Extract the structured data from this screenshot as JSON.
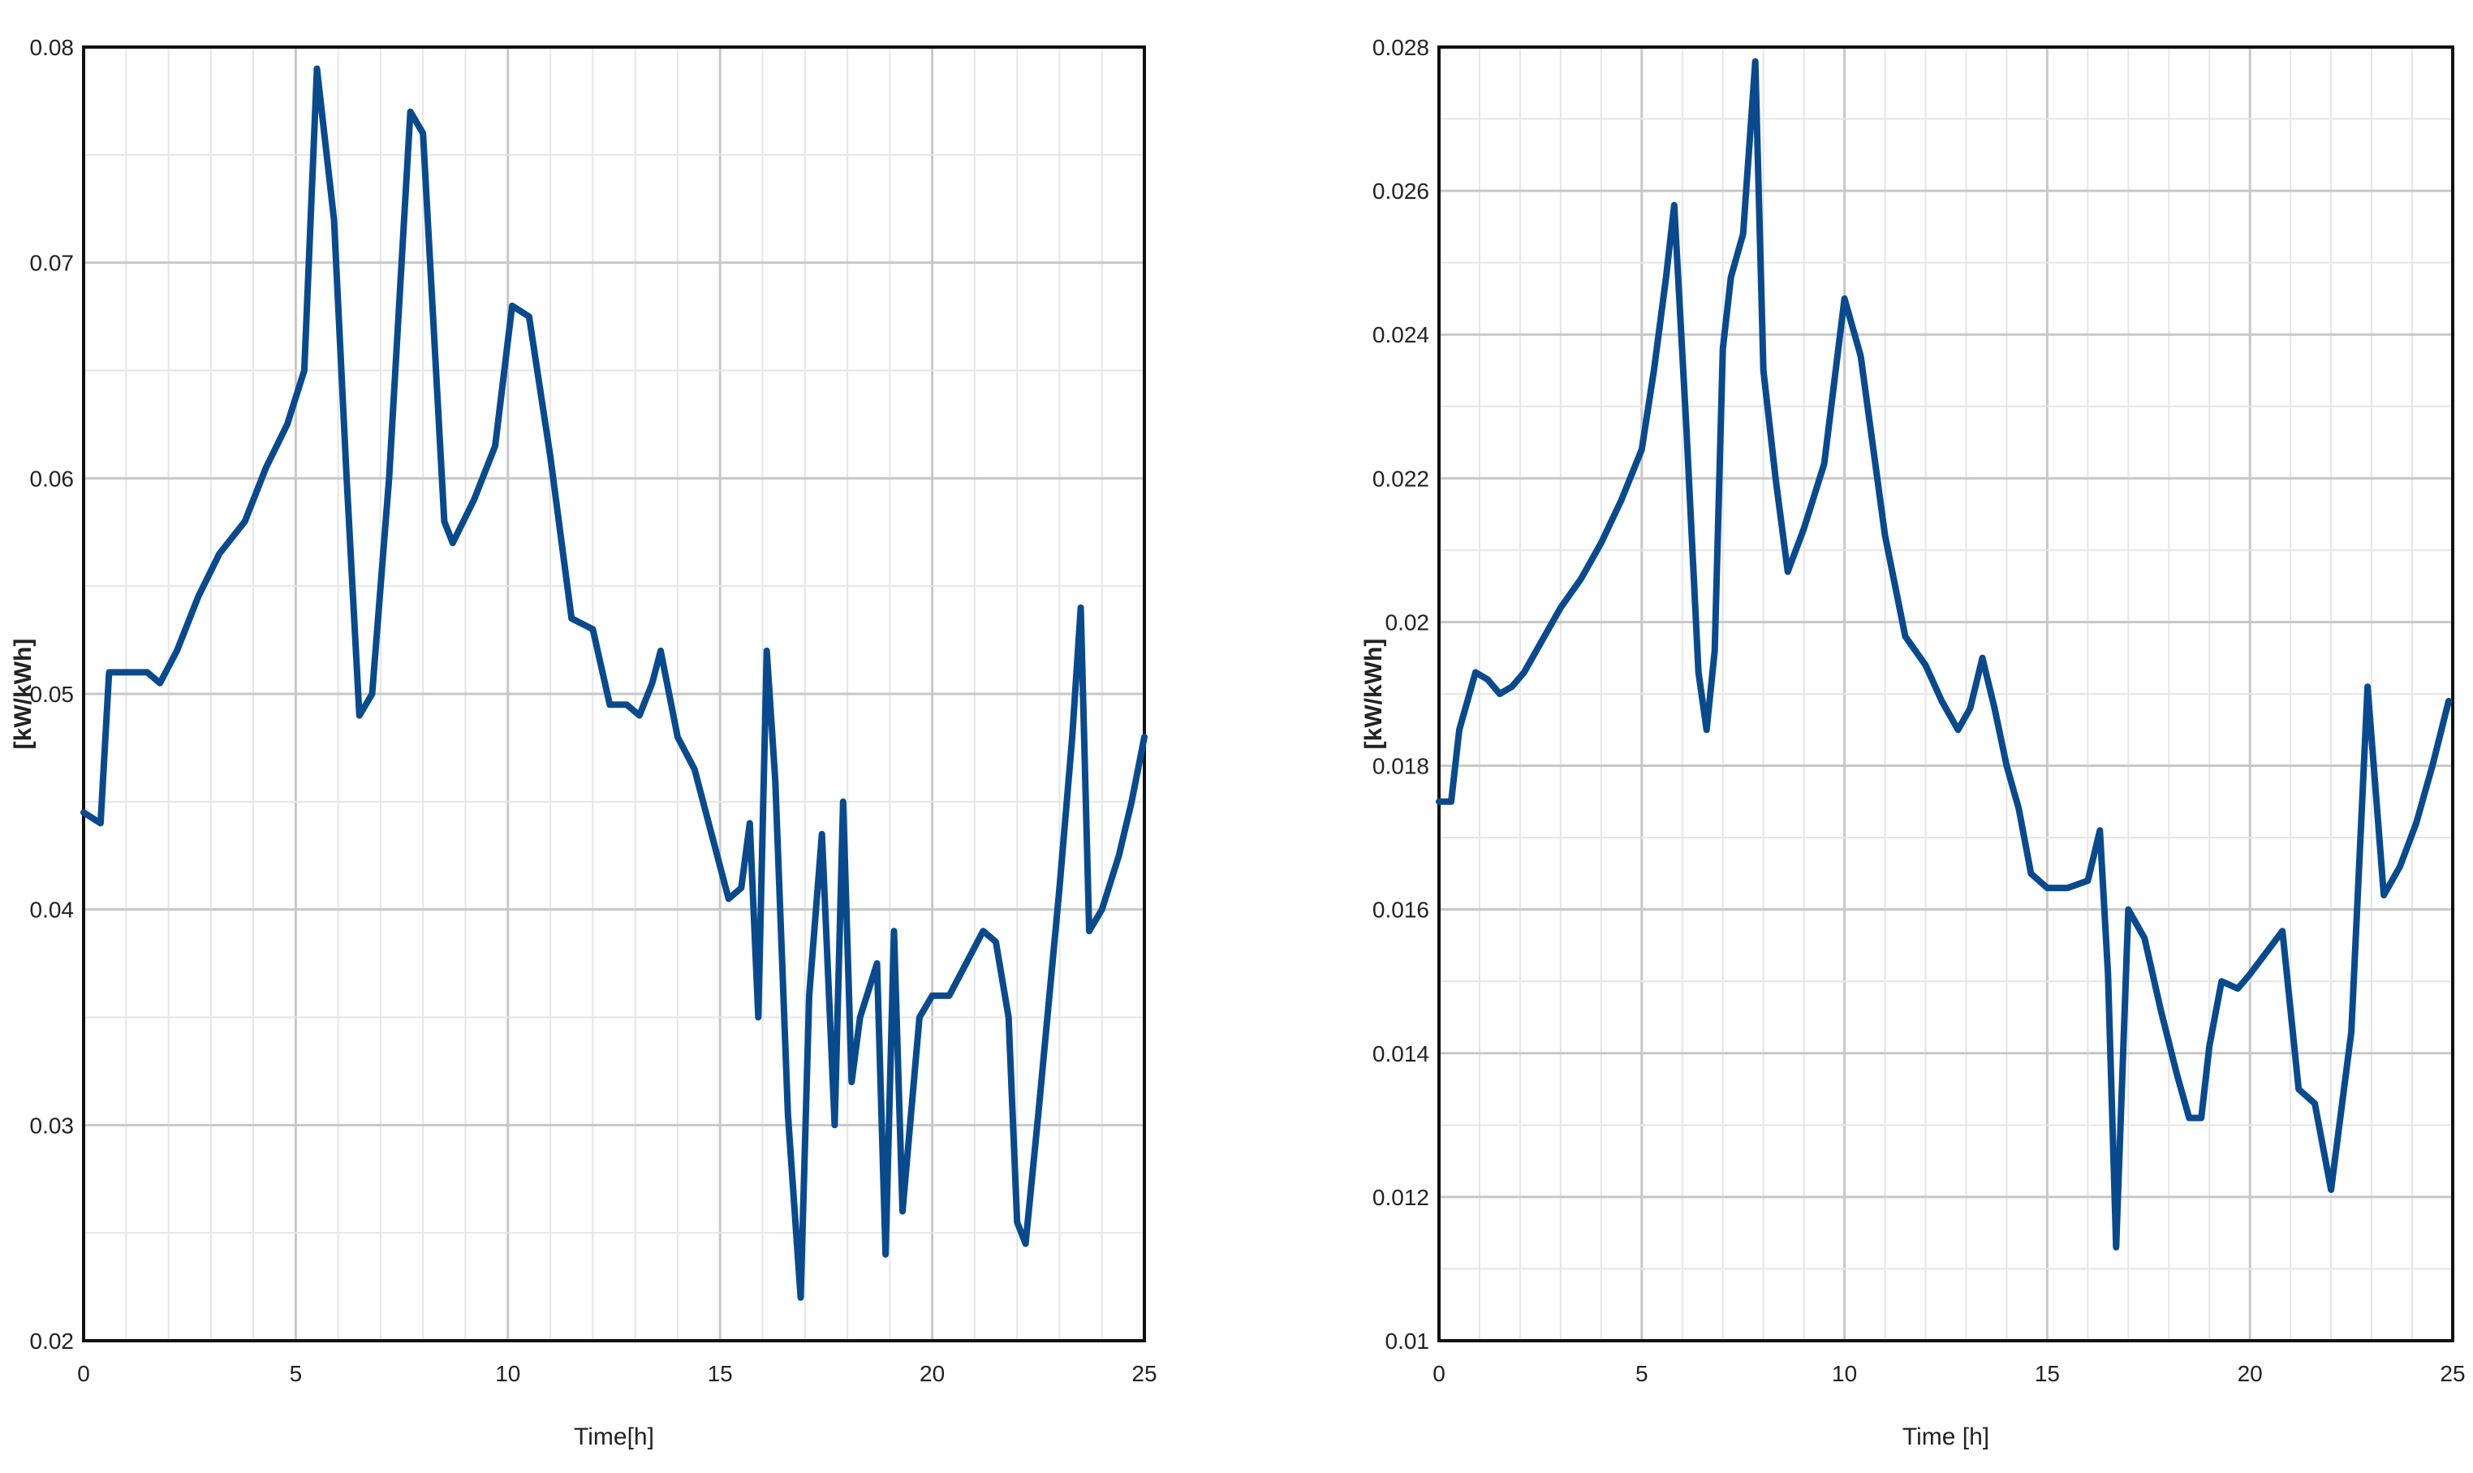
{
  "colors": {
    "line": "#0a4a8c",
    "grid_major": "#c8c8c8",
    "grid_minor": "#e6e6e6",
    "frame": "#111111",
    "background": "#ffffff"
  },
  "chart_data": [
    {
      "type": "line",
      "title": "",
      "xlabel": "Time[h]",
      "ylabel": "[kW/kWh]",
      "xlim": [
        0,
        25
      ],
      "ylim": [
        0.02,
        0.08
      ],
      "xticks": [
        0,
        5,
        10,
        15,
        20,
        25
      ],
      "xtick_labels": [
        "0",
        "5",
        "10",
        "15",
        "20",
        "25"
      ],
      "yticks": [
        0.02,
        0.03,
        0.04,
        0.05,
        0.06,
        0.07,
        0.08
      ],
      "ytick_labels": [
        "0.02",
        "0.03",
        "0.04",
        "0.05",
        "0.06",
        "0.07",
        "0.08"
      ],
      "grid": true,
      "series": [
        {
          "x": [
            0.0,
            0.4,
            0.6,
            1.0,
            1.5,
            1.8,
            2.2,
            2.7,
            3.2,
            3.8,
            4.3,
            4.8,
            5.2,
            5.5,
            5.9,
            6.2,
            6.5,
            6.8,
            7.2,
            7.7,
            8.0,
            8.5,
            8.7,
            9.2,
            9.7,
            10.1,
            10.5,
            11.0,
            11.5,
            12.0,
            12.4,
            12.8,
            13.1,
            13.4,
            13.6,
            14.0,
            14.4,
            14.8,
            15.2,
            15.5,
            15.7,
            15.9,
            16.1,
            16.3,
            16.6,
            16.9,
            17.1,
            17.4,
            17.7,
            17.9,
            18.1,
            18.3,
            18.7,
            18.9,
            19.1,
            19.3,
            19.7,
            20.0,
            20.4,
            20.8,
            21.2,
            21.5,
            21.8,
            22.0,
            22.2,
            22.5,
            23.0,
            23.3,
            23.5,
            23.7,
            24.0,
            24.4,
            24.7,
            25.0
          ],
          "y": [
            0.0445,
            0.044,
            0.051,
            0.051,
            0.051,
            0.0505,
            0.052,
            0.0545,
            0.0565,
            0.058,
            0.0605,
            0.0625,
            0.065,
            0.079,
            0.072,
            0.06,
            0.049,
            0.05,
            0.06,
            0.077,
            0.076,
            0.058,
            0.057,
            0.059,
            0.0615,
            0.068,
            0.0675,
            0.061,
            0.0535,
            0.053,
            0.0495,
            0.0495,
            0.049,
            0.0505,
            0.052,
            0.048,
            0.0465,
            0.0435,
            0.0405,
            0.041,
            0.044,
            0.035,
            0.052,
            0.046,
            0.0305,
            0.022,
            0.036,
            0.0435,
            0.03,
            0.045,
            0.032,
            0.035,
            0.0375,
            0.024,
            0.039,
            0.026,
            0.035,
            0.036,
            0.036,
            0.0375,
            0.039,
            0.0385,
            0.035,
            0.0255,
            0.0245,
            0.0305,
            0.041,
            0.048,
            0.054,
            0.039,
            0.04,
            0.0425,
            0.045,
            0.048
          ]
        }
      ]
    },
    {
      "type": "line",
      "title": "",
      "xlabel": "Time [h]",
      "ylabel": "[kW/kWh]",
      "xlim": [
        0,
        25
      ],
      "ylim": [
        0.01,
        0.028
      ],
      "xticks": [
        0,
        5,
        10,
        15,
        20,
        25
      ],
      "xtick_labels": [
        "0",
        "5",
        "10",
        "15",
        "20",
        "25"
      ],
      "yticks": [
        0.01,
        0.012,
        0.014,
        0.016,
        0.018,
        0.02,
        0.022,
        0.024,
        0.026,
        0.028
      ],
      "ytick_labels": [
        "0.01",
        "0.012",
        "0.014",
        "0.016",
        "0.018",
        "0.02",
        "0.022",
        "0.024",
        "0.026",
        "0.028"
      ],
      "grid": true,
      "series": [
        {
          "x": [
            0.0,
            0.3,
            0.5,
            0.9,
            1.2,
            1.5,
            1.8,
            2.1,
            2.5,
            3.0,
            3.5,
            4.0,
            4.5,
            5.0,
            5.3,
            5.6,
            5.8,
            6.1,
            6.4,
            6.6,
            6.8,
            7.0,
            7.2,
            7.5,
            7.8,
            8.0,
            8.3,
            8.6,
            9.0,
            9.5,
            10.0,
            10.4,
            11.0,
            11.5,
            12.0,
            12.4,
            12.8,
            13.1,
            13.4,
            13.7,
            14.0,
            14.3,
            14.6,
            15.0,
            15.5,
            16.0,
            16.3,
            16.5,
            16.7,
            17.0,
            17.4,
            17.8,
            18.2,
            18.5,
            18.8,
            19.0,
            19.3,
            19.7,
            20.0,
            20.4,
            20.8,
            21.2,
            21.6,
            22.0,
            22.5,
            22.9,
            23.3,
            23.7,
            24.1,
            24.5,
            24.9
          ],
          "y": [
            0.0175,
            0.0175,
            0.0185,
            0.0193,
            0.0192,
            0.019,
            0.0191,
            0.0193,
            0.0197,
            0.0202,
            0.0206,
            0.0211,
            0.0217,
            0.0224,
            0.0235,
            0.0248,
            0.0258,
            0.0227,
            0.0193,
            0.0185,
            0.0196,
            0.0238,
            0.0248,
            0.0254,
            0.0278,
            0.0235,
            0.022,
            0.0207,
            0.0213,
            0.0222,
            0.0245,
            0.0237,
            0.0212,
            0.0198,
            0.0194,
            0.0189,
            0.0185,
            0.0188,
            0.0195,
            0.0188,
            0.018,
            0.0174,
            0.0165,
            0.0163,
            0.0163,
            0.0164,
            0.0171,
            0.0151,
            0.0113,
            0.016,
            0.0156,
            0.0146,
            0.0137,
            0.0131,
            0.0131,
            0.0141,
            0.015,
            0.0149,
            0.0151,
            0.0154,
            0.0157,
            0.0135,
            0.0133,
            0.0121,
            0.0143,
            0.0191,
            0.0162,
            0.0166,
            0.0172,
            0.018,
            0.0189
          ]
        }
      ]
    }
  ]
}
